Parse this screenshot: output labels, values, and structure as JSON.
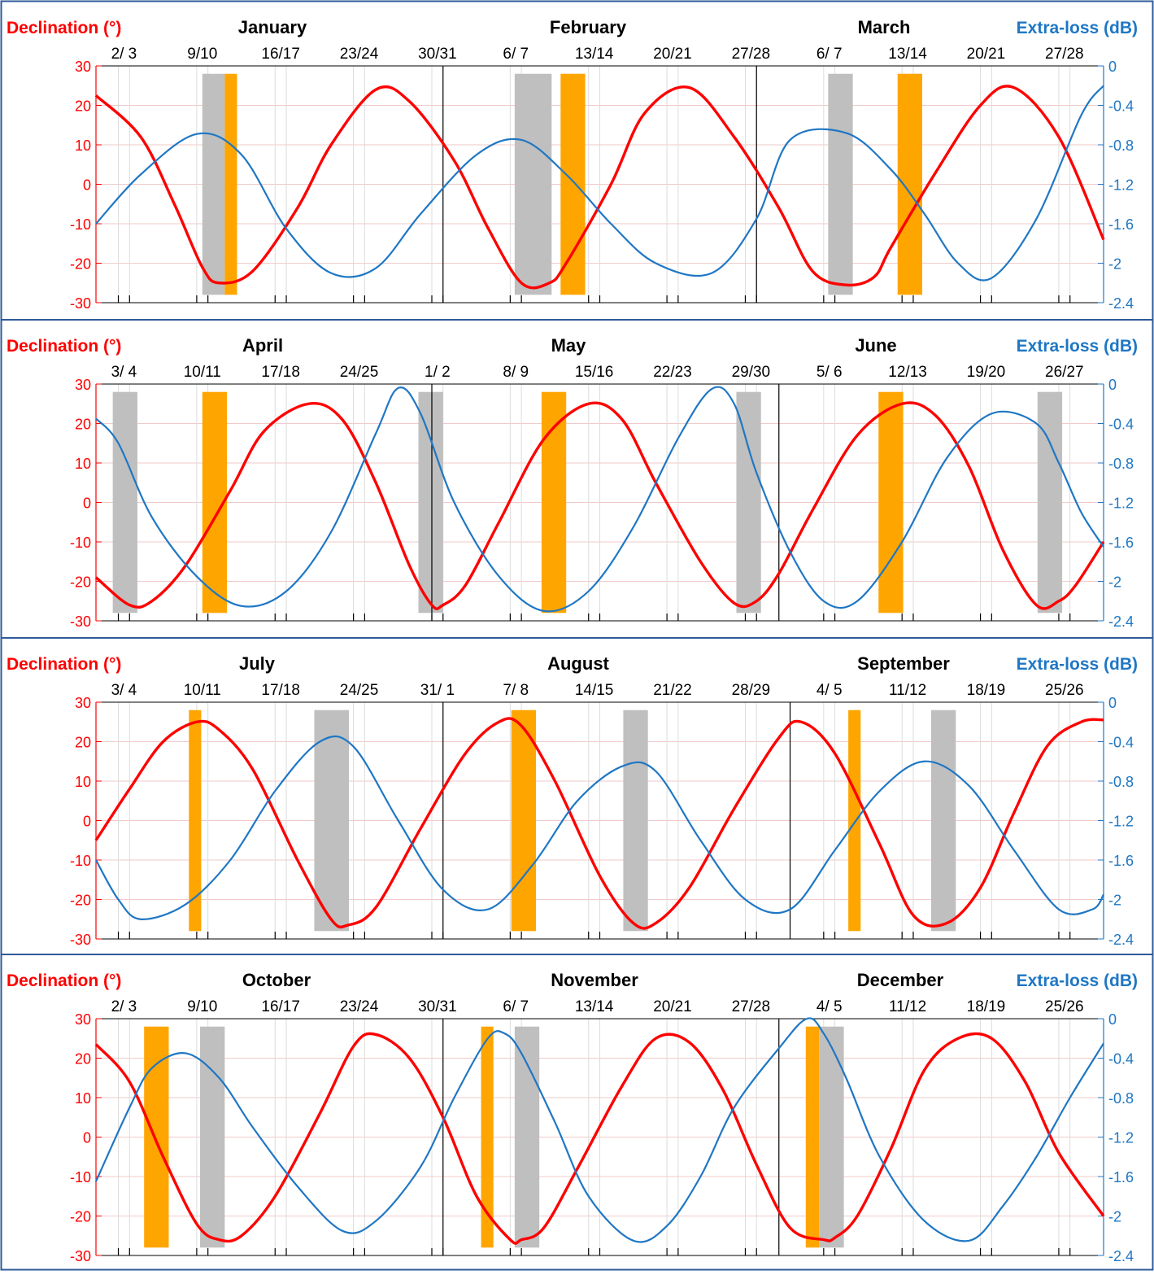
{
  "colors": {
    "declination": "#ff0000",
    "extra_loss": "#1f77c4",
    "grey_band": "#bfbfbf",
    "orange_band": "#ffa500",
    "frame": "#2e5a9a",
    "grid": "#f2caca",
    "tick": "#000000"
  },
  "labels": {
    "left_axis": "Declination (°)",
    "right_axis": "Extra-loss (dB)"
  },
  "chart_data": [
    {
      "type": "line",
      "title": "",
      "months": [
        "January",
        "February",
        "March"
      ],
      "day_labels": [
        "2/ 3",
        "9/10",
        "16/17",
        "23/24",
        "30/31",
        "6/ 7",
        "13/14",
        "20/21",
        "27/28",
        "6/ 7",
        "13/14",
        "20/21",
        "27/28"
      ],
      "day_label_x": [
        2.5,
        9.5,
        16.5,
        23.5,
        30.5,
        37.5,
        44.5,
        51.5,
        58.5,
        65.5,
        72.5,
        79.5,
        86.5
      ],
      "month_boundaries": [
        31,
        59
      ],
      "xlim": [
        0,
        90
      ],
      "ylim": [
        -30,
        30
      ],
      "y_ticks": [
        30,
        20,
        10,
        0,
        -10,
        -20,
        -30
      ],
      "y2lim": [
        -2.4,
        0
      ],
      "y2_ticks": [
        "0",
        "-0.4",
        "-0.8",
        "-1.2",
        "-1.6",
        "-2",
        "-2.4"
      ],
      "series": [
        {
          "name": "Declination (°)",
          "axis": "left",
          "x": [
            0,
            4,
            7,
            9.5,
            11,
            14,
            18,
            21,
            25,
            28,
            32,
            35,
            38,
            40.5,
            42,
            46,
            49,
            53,
            57,
            61,
            64,
            67,
            69.5,
            71,
            75,
            79,
            82,
            86,
            90
          ],
          "y": [
            22.5,
            12,
            -5,
            -21,
            -25,
            -22,
            -6,
            10,
            24,
            21,
            6,
            -11,
            -25,
            -25,
            -20,
            0,
            18,
            24.5,
            12,
            -6,
            -22,
            -25.5,
            -23.5,
            -16,
            3,
            20,
            24.5,
            12,
            -14
          ]
        },
        {
          "name": "Extra-loss (dB)",
          "axis": "right",
          "x": [
            0,
            4,
            9,
            13,
            17,
            21,
            25,
            29,
            34,
            38,
            42,
            46,
            50,
            55,
            59,
            62,
            67,
            71,
            74,
            77,
            80,
            84,
            88,
            90
          ],
          "y": [
            -1.6,
            -1.1,
            -0.69,
            -0.9,
            -1.65,
            -2.1,
            -2.05,
            -1.5,
            -0.9,
            -0.75,
            -1.1,
            -1.6,
            -2.0,
            -2.1,
            -1.55,
            -0.75,
            -0.68,
            -1.05,
            -1.5,
            -2.0,
            -2.15,
            -1.55,
            -0.5,
            -0.2
          ]
        }
      ],
      "bands": [
        {
          "kind": "grey",
          "x0": 9.5,
          "x1": 11.5
        },
        {
          "kind": "orange",
          "x0": 11.5,
          "x1": 12.6
        },
        {
          "kind": "grey",
          "x0": 37.4,
          "x1": 40.7
        },
        {
          "kind": "orange",
          "x0": 41.5,
          "x1": 43.7
        },
        {
          "kind": "grey",
          "x0": 65.4,
          "x1": 67.6
        },
        {
          "kind": "orange",
          "x0": 71.6,
          "x1": 73.8
        }
      ]
    },
    {
      "type": "line",
      "title": "",
      "months": [
        "April",
        "May",
        "June"
      ],
      "day_labels": [
        "3/ 4",
        "10/11",
        "17/18",
        "24/25",
        "1/ 2",
        "8/ 9",
        "15/16",
        "22/23",
        "29/30",
        "5/ 6",
        "12/13",
        "19/20",
        "26/27"
      ],
      "day_label_x": [
        2.5,
        9.5,
        16.5,
        23.5,
        30.5,
        37.5,
        44.5,
        51.5,
        58.5,
        65.5,
        72.5,
        79.5,
        86.5
      ],
      "month_boundaries": [
        30,
        61
      ],
      "xlim": [
        0,
        90
      ],
      "ylim": [
        -30,
        30
      ],
      "y_ticks": [
        30,
        20,
        10,
        0,
        -10,
        -20,
        -30
      ],
      "y2lim": [
        -2.4,
        0
      ],
      "y2_ticks": [
        "0",
        "-0.4",
        "-0.8",
        "-1.2",
        "-1.6",
        "-2",
        "-2.4"
      ],
      "series": [
        {
          "name": "Declination (°)",
          "axis": "left",
          "x": [
            0,
            3,
            5,
            8,
            12,
            15,
            19,
            22,
            25,
            28,
            30,
            31,
            33,
            36,
            40,
            44,
            47,
            50,
            54,
            57,
            59,
            61,
            64,
            68,
            72,
            75,
            78,
            81,
            84,
            86,
            87.5,
            90
          ],
          "y": [
            -19,
            -26,
            -25,
            -16,
            3,
            18,
            25,
            21,
            5,
            -16,
            -26,
            -26,
            -21,
            -5,
            16,
            25,
            21,
            5,
            -15,
            -25.5,
            -25,
            -18,
            -2,
            17,
            25,
            22,
            9,
            -12,
            -26,
            -25,
            -21,
            -10
          ]
        },
        {
          "name": "Extra-loss (dB)",
          "axis": "right",
          "x": [
            0,
            2,
            5,
            9,
            13,
            17,
            21,
            25,
            27,
            29,
            32,
            36,
            40,
            44,
            48,
            52,
            55,
            57,
            59,
            62,
            65,
            68,
            72,
            76,
            80,
            84,
            86,
            88,
            90
          ],
          "y": [
            -0.35,
            -0.6,
            -1.35,
            -1.95,
            -2.25,
            -2.1,
            -1.5,
            -0.5,
            -0.04,
            -0.3,
            -1.2,
            -1.95,
            -2.3,
            -2.1,
            -1.45,
            -0.55,
            -0.05,
            -0.2,
            -0.9,
            -1.7,
            -2.2,
            -2.2,
            -1.6,
            -0.75,
            -0.3,
            -0.4,
            -0.8,
            -1.3,
            -1.65
          ]
        }
      ],
      "bands": [
        {
          "kind": "grey",
          "x0": 1.5,
          "x1": 3.7
        },
        {
          "kind": "orange",
          "x0": 9.5,
          "x1": 11.7
        },
        {
          "kind": "grey",
          "x0": 28.8,
          "x1": 31
        },
        {
          "kind": "orange",
          "x0": 39.8,
          "x1": 42
        },
        {
          "kind": "grey",
          "x0": 57.2,
          "x1": 59.4
        },
        {
          "kind": "orange",
          "x0": 69.9,
          "x1": 72.1
        },
        {
          "kind": "grey",
          "x0": 84.1,
          "x1": 86.3
        }
      ]
    },
    {
      "type": "line",
      "title": "",
      "months": [
        "July",
        "August",
        "September"
      ],
      "day_labels": [
        "3/ 4",
        "10/11",
        "17/18",
        "24/25",
        "31/ 1",
        "7/ 8",
        "14/15",
        "21/22",
        "28/29",
        "4/ 5",
        "11/12",
        "18/19",
        "25/26"
      ],
      "day_label_x": [
        2.5,
        9.5,
        16.5,
        23.5,
        30.5,
        37.5,
        44.5,
        51.5,
        58.5,
        65.5,
        72.5,
        79.5,
        86.5
      ],
      "month_boundaries": [
        31,
        62
      ],
      "xlim": [
        0,
        90
      ],
      "ylim": [
        -30,
        30
      ],
      "y_ticks": [
        30,
        20,
        10,
        0,
        -10,
        -20,
        -30
      ],
      "y2lim": [
        -2.4,
        0
      ],
      "y2_ticks": [
        "0",
        "-0.4",
        "-0.8",
        "-1.2",
        "-1.6",
        "-2",
        "-2.4"
      ],
      "series": [
        {
          "name": "Declination (°)",
          "axis": "left",
          "x": [
            0,
            3,
            6,
            9,
            11,
            14,
            18,
            21,
            22.5,
            25,
            29,
            33,
            36,
            38,
            41,
            45,
            48,
            50,
            53,
            57,
            61,
            63,
            66,
            70,
            73,
            76,
            79,
            82,
            85,
            88,
            90
          ],
          "y": [
            -5,
            8,
            20,
            25,
            23,
            13,
            -10,
            -25,
            -26.5,
            -22,
            -2,
            17,
            25,
            24,
            10,
            -14,
            -26,
            -26,
            -17,
            3,
            21,
            25,
            17,
            -6,
            -24,
            -26,
            -17,
            2,
            19,
            25,
            25.5
          ]
        },
        {
          "name": "Extra-loss (dB)",
          "axis": "right",
          "x": [
            0,
            2,
            4,
            8,
            12,
            16,
            20,
            23,
            27,
            31,
            35,
            39,
            43,
            47,
            50,
            54,
            58,
            62,
            66,
            70,
            74,
            78,
            82,
            86,
            89,
            90
          ],
          "y": [
            -1.6,
            -2.0,
            -2.2,
            -2.05,
            -1.6,
            -0.9,
            -0.4,
            -0.45,
            -1.2,
            -1.9,
            -2.1,
            -1.65,
            -1.0,
            -0.65,
            -0.7,
            -1.4,
            -2.0,
            -2.1,
            -1.5,
            -0.9,
            -0.6,
            -0.85,
            -1.5,
            -2.1,
            -2.1,
            -1.95
          ]
        }
      ],
      "bands": [
        {
          "kind": "orange",
          "x0": 8.3,
          "x1": 9.4
        },
        {
          "kind": "grey",
          "x0": 19.5,
          "x1": 22.6
        },
        {
          "kind": "orange",
          "x0": 37.1,
          "x1": 39.3
        },
        {
          "kind": "grey",
          "x0": 47.1,
          "x1": 49.3
        },
        {
          "kind": "orange",
          "x0": 67.2,
          "x1": 68.3
        },
        {
          "kind": "grey",
          "x0": 74.6,
          "x1": 76.8
        }
      ]
    },
    {
      "type": "line",
      "title": "",
      "months": [
        "October",
        "November",
        "December"
      ],
      "day_labels": [
        "2/ 3",
        "9/10",
        "16/17",
        "23/24",
        "30/31",
        "6/ 7",
        "13/14",
        "20/21",
        "27/28",
        "4/ 5",
        "11/12",
        "18/19",
        "25/26"
      ],
      "day_label_x": [
        2.5,
        9.5,
        16.5,
        23.5,
        30.5,
        37.5,
        44.5,
        51.5,
        58.5,
        65.5,
        72.5,
        79.5,
        86.5
      ],
      "month_boundaries": [
        31,
        61
      ],
      "xlim": [
        0,
        90
      ],
      "ylim": [
        -30,
        30
      ],
      "y_ticks": [
        30,
        20,
        10,
        0,
        -10,
        -20,
        -30
      ],
      "y2lim": [
        -2.4,
        0
      ],
      "y2_ticks": [
        "0",
        "-0.4",
        "-0.8",
        "-1.2",
        "-1.6",
        "-2",
        "-2.4"
      ],
      "series": [
        {
          "name": "Declination (°)",
          "axis": "left",
          "x": [
            0,
            3,
            6,
            9,
            11,
            13,
            16,
            20,
            23,
            25,
            28,
            31,
            34,
            37,
            38,
            40,
            43,
            47,
            50,
            53,
            56,
            59,
            62,
            65,
            66,
            68,
            71,
            74,
            77,
            80,
            83,
            86,
            90
          ],
          "y": [
            23.5,
            14,
            -5,
            -22,
            -26,
            -25,
            -15,
            6,
            23,
            26,
            20,
            5,
            -15,
            -26,
            -26,
            -23,
            -8,
            13,
            25,
            24,
            12,
            -7,
            -23,
            -26,
            -25.5,
            -20,
            -3,
            17,
            25,
            25,
            14,
            -4,
            -20
          ]
        },
        {
          "name": "Extra-loss (dB)",
          "axis": "right",
          "x": [
            0,
            3,
            5,
            8,
            11,
            14,
            18,
            22,
            25,
            29,
            32,
            35,
            36.5,
            38,
            41,
            44,
            48,
            51,
            54,
            57,
            61,
            63.5,
            65,
            67,
            70,
            74,
            78,
            81,
            84,
            87,
            90
          ],
          "y": [
            -1.65,
            -0.9,
            -0.5,
            -0.35,
            -0.6,
            -1.1,
            -1.7,
            -2.15,
            -2.05,
            -1.5,
            -0.8,
            -0.2,
            -0.15,
            -0.35,
            -1.05,
            -1.8,
            -2.25,
            -2.1,
            -1.6,
            -0.9,
            -0.3,
            0.0,
            -0.15,
            -0.6,
            -1.4,
            -2.05,
            -2.25,
            -1.9,
            -1.4,
            -0.8,
            -0.25
          ]
        }
      ],
      "bands": [
        {
          "kind": "orange",
          "x0": 4.3,
          "x1": 6.5
        },
        {
          "kind": "grey",
          "x0": 9.3,
          "x1": 11.5
        },
        {
          "kind": "orange",
          "x0": 34.4,
          "x1": 35.5
        },
        {
          "kind": "grey",
          "x0": 37.4,
          "x1": 39.6
        },
        {
          "kind": "orange",
          "x0": 63.4,
          "x1": 64.6
        },
        {
          "kind": "grey",
          "x0": 64.6,
          "x1": 66.8
        }
      ]
    }
  ]
}
